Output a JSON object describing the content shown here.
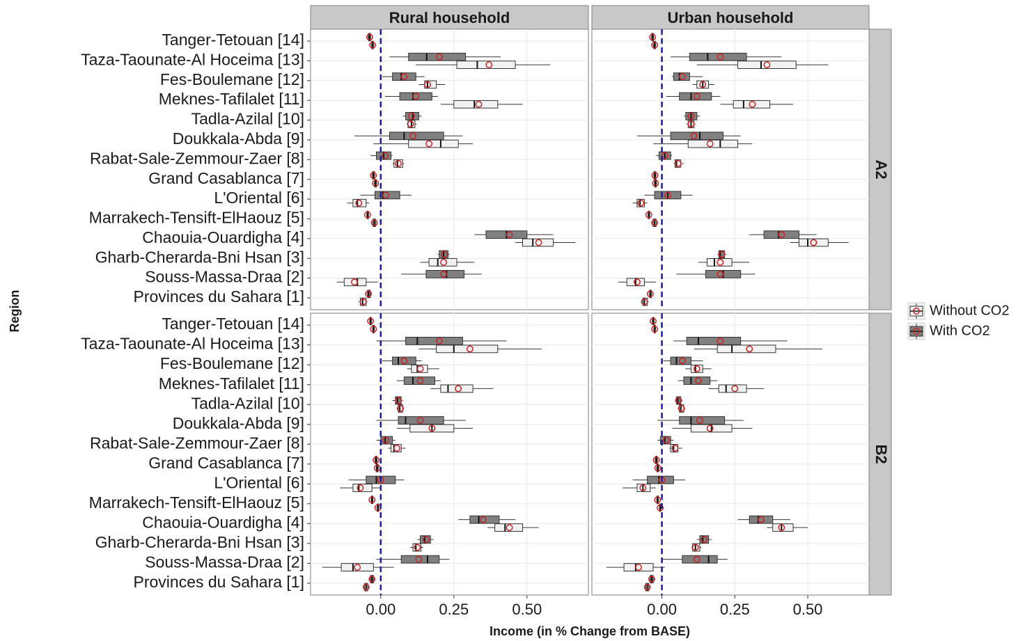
{
  "chart_data": {
    "type": "boxplot",
    "x_label": "Income (in % Change from BASE)",
    "y_label": "Region",
    "columns": [
      "Rural household",
      "Urban household"
    ],
    "rows": [
      "A2",
      "B2"
    ],
    "categories": [
      "Tanger-Tetouan [14]",
      "Taza-Taounate-Al Hoceima [13]",
      "Fes-Boulemane [12]",
      "Meknes-Tafilalet [11]",
      "Tadla-Azilal [10]",
      "Doukkala-Abda [9]",
      "Rabat-Sale-Zemmour-Zaer [8]",
      "Grand Casablanca [7]",
      "L'Oriental [6]",
      "Marrakech-Tensift-ElHaouz [5]",
      "Chaouia-Ouardigha [4]",
      "Gharb-Cherarda-Bni Hsan [3]",
      "Souss-Massa-Draa [2]",
      "Provinces du Sahara [1]"
    ],
    "series": [
      {
        "name": "Without CO2",
        "color": "#f2f2f2"
      },
      {
        "name": "With CO2",
        "color": "#808080"
      }
    ],
    "mean_color": "#cc2222",
    "ref_line": 0,
    "ref_color": "#1a1aa6",
    "xlim": [
      -0.24,
      0.71
    ],
    "xticks": [
      {
        "value": 0,
        "label": "0.00"
      },
      {
        "value": 0.25,
        "label": "0.25"
      },
      {
        "value": 0.5,
        "label": "0.50"
      }
    ],
    "grid": true,
    "legend": "right",
    "data": [
      [
        [
          [
            [
              -0.035,
              -0.031,
              -0.028,
              -0.025,
              -0.022,
              -0.028
            ],
            [
              0.12,
              0.26,
              0.33,
              0.46,
              0.58,
              0.37
            ],
            [
              0.13,
              0.15,
              0.16,
              0.19,
              0.22,
              0.16
            ],
            [
              0.205,
              0.25,
              0.32,
              0.4,
              0.485,
              0.335
            ],
            [
              0.088,
              0.093,
              0.105,
              0.117,
              0.122,
              0.102
            ],
            [
              -0.025,
              0.095,
              0.205,
              0.265,
              0.315,
              0.165
            ],
            [
              0.04,
              0.045,
              0.057,
              0.075,
              0.08,
              0.06
            ],
            [
              -0.025,
              -0.021,
              -0.018,
              -0.015,
              -0.012,
              -0.018
            ],
            [
              -0.115,
              -0.095,
              -0.08,
              -0.05,
              -0.04,
              -0.075
            ],
            [
              -0.03,
              -0.026,
              -0.022,
              -0.018,
              -0.015,
              -0.022
            ],
            [
              0.46,
              0.485,
              0.52,
              0.59,
              0.665,
              0.54
            ],
            [
              0.135,
              0.165,
              0.195,
              0.26,
              0.32,
              0.215
            ],
            [
              -0.15,
              -0.125,
              -0.08,
              -0.05,
              -0.01,
              -0.09
            ],
            [
              -0.075,
              -0.07,
              -0.062,
              -0.05,
              -0.045,
              -0.06
            ]
          ],
          [
            [
              -0.045,
              -0.042,
              -0.039,
              -0.035,
              -0.032,
              -0.038
            ],
            [
              0.03,
              0.095,
              0.157,
              0.29,
              0.41,
              0.2
            ],
            [
              0.005,
              0.04,
              0.07,
              0.12,
              0.15,
              0.08
            ],
            [
              0.015,
              0.065,
              0.11,
              0.175,
              0.195,
              0.12
            ],
            [
              0.075,
              0.085,
              0.11,
              0.13,
              0.14,
              0.105
            ],
            [
              -0.09,
              0.03,
              0.08,
              0.215,
              0.28,
              0.11
            ],
            [
              -0.035,
              -0.015,
              0.01,
              0.035,
              0.04,
              0.015
            ],
            [
              -0.032,
              -0.028,
              -0.025,
              -0.022,
              -0.018,
              -0.025
            ],
            [
              -0.07,
              -0.02,
              0.007,
              0.065,
              0.105,
              0.017
            ],
            [
              -0.05,
              -0.047,
              -0.045,
              -0.042,
              -0.04,
              -0.045
            ],
            [
              0.32,
              0.36,
              0.43,
              0.5,
              0.59,
              0.44
            ],
            [
              0.195,
              0.2,
              0.215,
              0.23,
              0.235,
              0.217
            ],
            [
              0.07,
              0.155,
              0.225,
              0.285,
              0.345,
              0.215
            ],
            [
              -0.048,
              -0.045,
              -0.042,
              -0.036,
              -0.033,
              -0.042
            ]
          ]
        ],
        [
          [
            [
              -0.032,
              -0.028,
              -0.025,
              -0.022,
              -0.019,
              -0.025
            ],
            [
              0.12,
              0.26,
              0.34,
              0.46,
              0.57,
              0.36
            ],
            [
              0.105,
              0.12,
              0.14,
              0.16,
              0.18,
              0.14
            ],
            [
              0.2,
              0.245,
              0.28,
              0.37,
              0.45,
              0.31
            ],
            [
              0.085,
              0.09,
              0.1,
              0.11,
              0.115,
              0.1
            ],
            [
              -0.03,
              0.09,
              0.2,
              0.26,
              0.31,
              0.165
            ],
            [
              0.04,
              0.045,
              0.05,
              0.065,
              0.075,
              0.055
            ],
            [
              -0.028,
              -0.025,
              -0.022,
              -0.019,
              -0.016,
              -0.022
            ],
            [
              -0.1,
              -0.085,
              -0.075,
              -0.06,
              -0.05,
              -0.072
            ],
            [
              -0.035,
              -0.03,
              -0.025,
              -0.02,
              -0.016,
              -0.025
            ],
            [
              0.44,
              0.47,
              0.5,
              0.57,
              0.64,
              0.52
            ],
            [
              0.125,
              0.155,
              0.18,
              0.24,
              0.3,
              0.2
            ],
            [
              -0.15,
              -0.12,
              -0.09,
              -0.06,
              -0.02,
              -0.085
            ],
            [
              -0.07,
              -0.065,
              -0.06,
              -0.05,
              -0.045,
              -0.06
            ]
          ],
          [
            [
              -0.038,
              -0.035,
              -0.032,
              -0.029,
              -0.026,
              -0.032
            ],
            [
              0.03,
              0.095,
              0.157,
              0.29,
              0.41,
              0.2
            ],
            [
              0.035,
              0.04,
              0.06,
              0.095,
              0.14,
              0.07
            ],
            [
              0.015,
              0.06,
              0.1,
              0.17,
              0.2,
              0.12
            ],
            [
              0.075,
              0.082,
              0.1,
              0.12,
              0.13,
              0.1
            ],
            [
              -0.085,
              0.03,
              0.13,
              0.21,
              0.27,
              0.11
            ],
            [
              -0.02,
              -0.01,
              0.01,
              0.03,
              0.035,
              0.01
            ],
            [
              -0.03,
              -0.027,
              -0.024,
              -0.021,
              -0.018,
              -0.024
            ],
            [
              -0.06,
              -0.025,
              0.02,
              0.065,
              0.105,
              0.02
            ],
            [
              -0.05,
              -0.047,
              -0.045,
              -0.042,
              -0.04,
              -0.045
            ],
            [
              0.3,
              0.35,
              0.4,
              0.47,
              0.53,
              0.41
            ],
            [
              0.19,
              0.195,
              0.2,
              0.215,
              0.22,
              0.205
            ],
            [
              0.05,
              0.15,
              0.21,
              0.27,
              0.32,
              0.2
            ],
            [
              -0.045,
              -0.042,
              -0.04,
              -0.036,
              -0.033,
              -0.04
            ]
          ]
        ]
      ],
      [
        [
          [
            [
              -0.03,
              -0.027,
              -0.025,
              -0.022,
              -0.02,
              -0.025
            ],
            [
              0.13,
              0.19,
              0.25,
              0.4,
              0.55,
              0.305
            ],
            [
              0.09,
              0.105,
              0.125,
              0.16,
              0.2,
              0.135
            ],
            [
              0.17,
              0.205,
              0.23,
              0.315,
              0.385,
              0.265
            ],
            [
              0.055,
              0.06,
              0.065,
              0.075,
              0.08,
              0.067
            ],
            [
              0.055,
              0.1,
              0.175,
              0.25,
              0.315,
              0.175
            ],
            [
              0.025,
              0.035,
              0.045,
              0.07,
              0.085,
              0.055
            ],
            [
              -0.018,
              -0.015,
              -0.012,
              -0.009,
              -0.006,
              -0.012
            ],
            [
              -0.14,
              -0.095,
              -0.075,
              -0.03,
              0.0,
              -0.07
            ],
            [
              -0.015,
              -0.012,
              -0.01,
              -0.007,
              -0.005,
              -0.01
            ],
            [
              0.365,
              0.39,
              0.425,
              0.485,
              0.54,
              0.44
            ],
            [
              0.1,
              0.11,
              0.12,
              0.138,
              0.145,
              0.125
            ],
            [
              -0.2,
              -0.135,
              -0.095,
              -0.025,
              0.045,
              -0.08
            ],
            [
              -0.06,
              -0.055,
              -0.05,
              -0.045,
              -0.04,
              -0.05
            ]
          ],
          [
            [
              -0.04,
              -0.037,
              -0.035,
              -0.032,
              -0.03,
              -0.035
            ],
            [
              -0.015,
              0.085,
              0.125,
              0.28,
              0.43,
              0.2
            ],
            [
              0.005,
              0.04,
              0.06,
              0.12,
              0.14,
              0.08
            ],
            [
              0.055,
              0.08,
              0.11,
              0.185,
              0.205,
              0.135
            ],
            [
              0.04,
              0.05,
              0.057,
              0.07,
              0.075,
              0.06
            ],
            [
              -0.015,
              0.06,
              0.085,
              0.215,
              0.29,
              0.135
            ],
            [
              -0.015,
              0.0,
              0.015,
              0.04,
              0.05,
              0.017
            ],
            [
              -0.022,
              -0.019,
              -0.016,
              -0.013,
              -0.01,
              -0.016
            ],
            [
              -0.11,
              -0.05,
              -0.015,
              0.05,
              0.08,
              0.0
            ],
            [
              -0.035,
              -0.032,
              -0.03,
              -0.027,
              -0.025,
              -0.03
            ],
            [
              0.265,
              0.305,
              0.335,
              0.405,
              0.46,
              0.35
            ],
            [
              0.125,
              0.135,
              0.15,
              0.17,
              0.18,
              0.155
            ],
            [
              -0.015,
              0.07,
              0.16,
              0.2,
              0.235,
              0.13
            ],
            [
              -0.04,
              -0.035,
              -0.03,
              -0.025,
              -0.02,
              -0.03
            ]
          ]
        ],
        [
          [
            [
              -0.03,
              -0.027,
              -0.025,
              -0.022,
              -0.02,
              -0.025
            ],
            [
              0.11,
              0.19,
              0.24,
              0.39,
              0.55,
              0.3
            ],
            [
              0.08,
              0.1,
              0.115,
              0.14,
              0.17,
              0.12
            ],
            [
              0.16,
              0.195,
              0.22,
              0.29,
              0.35,
              0.25
            ],
            [
              0.055,
              0.06,
              0.065,
              0.075,
              0.08,
              0.067
            ],
            [
              0.035,
              0.1,
              0.17,
              0.24,
              0.31,
              0.165
            ],
            [
              0.025,
              0.03,
              0.04,
              0.055,
              0.07,
              0.045
            ],
            [
              -0.02,
              -0.017,
              -0.014,
              -0.011,
              -0.008,
              -0.014
            ],
            [
              -0.135,
              -0.085,
              -0.065,
              -0.04,
              -0.02,
              -0.065
            ],
            [
              -0.01,
              -0.008,
              -0.006,
              -0.004,
              -0.002,
              -0.006
            ],
            [
              0.36,
              0.38,
              0.41,
              0.45,
              0.5,
              0.41
            ],
            [
              0.1,
              0.105,
              0.115,
              0.13,
              0.135,
              0.115
            ],
            [
              -0.19,
              -0.13,
              -0.09,
              -0.03,
              0.01,
              -0.08
            ],
            [
              -0.06,
              -0.055,
              -0.05,
              -0.045,
              -0.04,
              -0.05
            ]
          ],
          [
            [
              -0.035,
              -0.032,
              -0.03,
              -0.027,
              -0.025,
              -0.03
            ],
            [
              0.04,
              0.085,
              0.125,
              0.27,
              0.43,
              0.2
            ],
            [
              0.005,
              0.03,
              0.05,
              0.1,
              0.14,
              0.07
            ],
            [
              0.055,
              0.075,
              0.1,
              0.165,
              0.19,
              0.125
            ],
            [
              0.045,
              0.05,
              0.055,
              0.065,
              0.07,
              0.057
            ],
            [
              -0.015,
              0.06,
              0.1,
              0.215,
              0.28,
              0.13
            ],
            [
              -0.015,
              -0.005,
              0.01,
              0.03,
              0.04,
              0.015
            ],
            [
              -0.025,
              -0.022,
              -0.019,
              -0.016,
              -0.013,
              -0.019
            ],
            [
              -0.1,
              -0.05,
              -0.01,
              0.04,
              0.08,
              0.0
            ],
            [
              -0.02,
              -0.017,
              -0.015,
              -0.012,
              -0.01,
              -0.015
            ],
            [
              0.26,
              0.3,
              0.33,
              0.38,
              0.44,
              0.34
            ],
            [
              0.12,
              0.13,
              0.14,
              0.16,
              0.17,
              0.145
            ],
            [
              0.0,
              0.07,
              0.16,
              0.19,
              0.225,
              0.12
            ],
            [
              -0.045,
              -0.04,
              -0.035,
              -0.03,
              -0.025,
              -0.035
            ]
          ]
        ]
      ]
    ]
  }
}
